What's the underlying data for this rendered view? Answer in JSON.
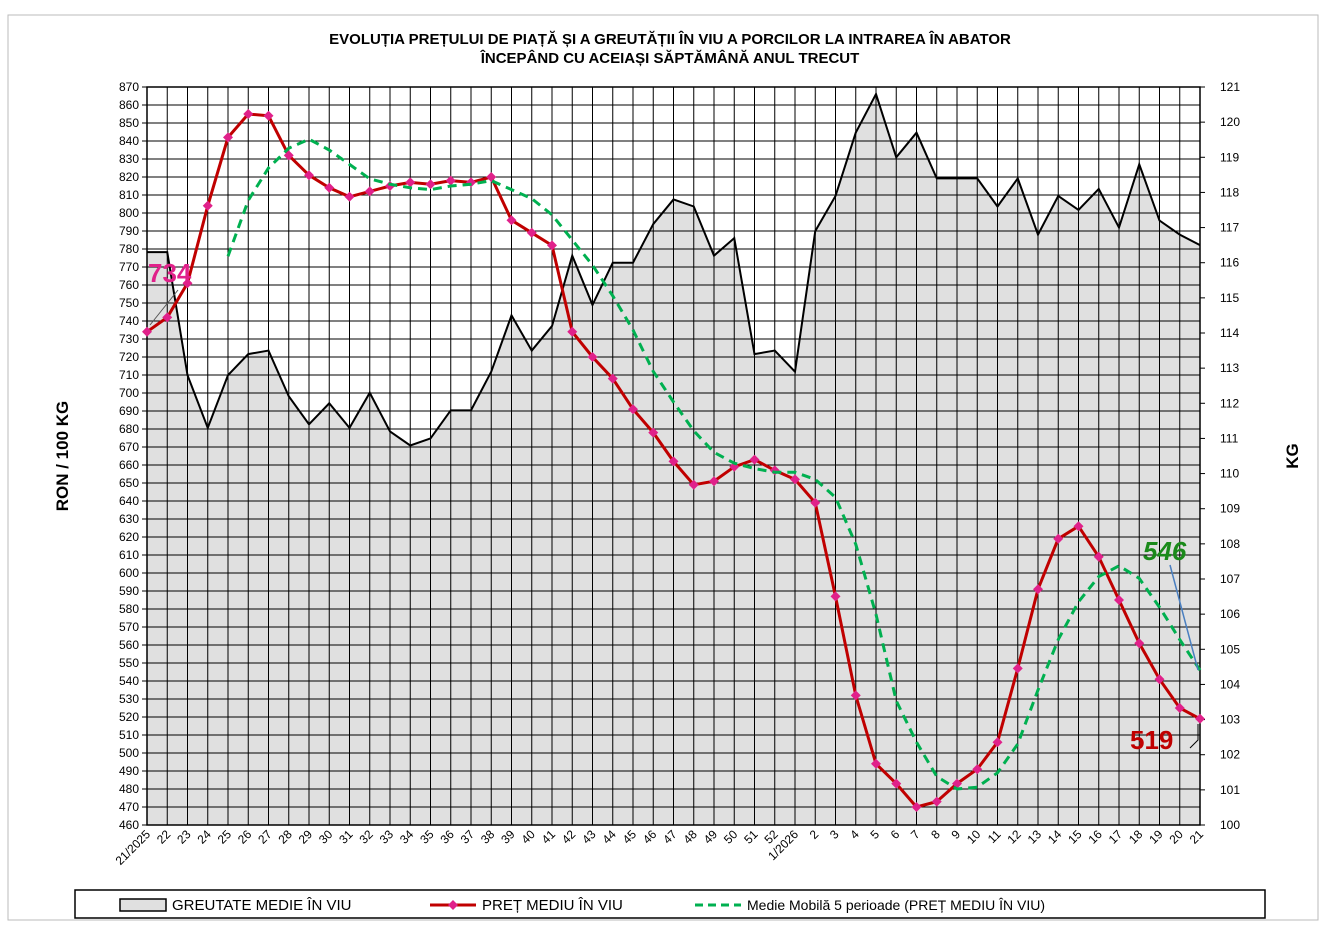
{
  "chart_data": {
    "type": "line",
    "title": [
      "EVOLUȚIA PREȚULUI DE PIAȚĂ ȘI A GREUTĂȚII  ÎN VIU A PORCILOR LA INTRAREA  ÎN ABATOR",
      "ÎNCEPÂND  CU ACEIAȘI SĂPTĂMÂNĂ ANUL TRECUT"
    ],
    "y_label": "RON / 100 KG",
    "y2_label": "KG",
    "categories": [
      "21/2025",
      "22",
      "23",
      "24",
      "25",
      "26",
      "27",
      "28",
      "29",
      "30",
      "31",
      "32",
      "33",
      "34",
      "35",
      "36",
      "37",
      "38",
      "39",
      "40",
      "41",
      "42",
      "43",
      "44",
      "45",
      "46",
      "47",
      "48",
      "49",
      "50",
      "51",
      "52",
      "1/2026",
      "2",
      "3",
      "4",
      "5",
      "6",
      "7",
      "8",
      "9",
      "10",
      "11",
      "12",
      "13",
      "14",
      "15",
      "16",
      "17",
      "18",
      "19",
      "20",
      "21"
    ],
    "ylim": [
      460,
      870
    ],
    "yticks": [
      460,
      470,
      480,
      490,
      500,
      510,
      520,
      530,
      540,
      550,
      560,
      570,
      580,
      590,
      600,
      610,
      620,
      630,
      640,
      650,
      660,
      670,
      680,
      690,
      700,
      710,
      720,
      730,
      740,
      750,
      760,
      770,
      780,
      790,
      800,
      810,
      820,
      830,
      840,
      850,
      860,
      870
    ],
    "y2lim": [
      100,
      121
    ],
    "y2ticks": [
      100,
      101,
      102,
      103,
      104,
      105,
      106,
      107,
      108,
      109,
      110,
      111,
      112,
      113,
      114,
      115,
      116,
      117,
      118,
      119,
      120,
      121
    ],
    "grid": true,
    "series": [
      {
        "name": "GREUTATE MEDIE ÎN VIU",
        "kind": "area",
        "axis": "y2",
        "color": "#000000",
        "fill": "#e0e0e0",
        "values": [
          116.3,
          116.3,
          112.8,
          111.3,
          112.8,
          113.4,
          113.5,
          112.2,
          111.4,
          112.0,
          111.3,
          112.3,
          111.2,
          110.8,
          111.0,
          111.8,
          111.8,
          112.9,
          114.5,
          113.5,
          114.2,
          116.2,
          114.8,
          116.0,
          116.0,
          117.1,
          117.8,
          117.6,
          116.2,
          116.7,
          113.4,
          113.5,
          112.9,
          116.9,
          117.9,
          119.7,
          120.8,
          119.0,
          119.7,
          118.4,
          118.4,
          118.4,
          117.6,
          118.4,
          116.8,
          117.9,
          117.5,
          118.1,
          117.0,
          118.8,
          117.2,
          116.8,
          116.5
        ]
      },
      {
        "name": "PREȚ MEDIU ÎN VIU",
        "kind": "line",
        "color": "#c00000",
        "marker_color": "#e0218a",
        "values": [
          734,
          742,
          761,
          804,
          842,
          855,
          854,
          832,
          821,
          814,
          809,
          812,
          815,
          817,
          816,
          818,
          817,
          820,
          796,
          789,
          782,
          734,
          720,
          708,
          691,
          678,
          662,
          649,
          651,
          659,
          663,
          657,
          652,
          639,
          587,
          532,
          494,
          483,
          470,
          473,
          483,
          491,
          506,
          547,
          591,
          619,
          626,
          609,
          585,
          561,
          541,
          525,
          519
        ]
      },
      {
        "name": "Medie Mobilă 5 perioade  (PREȚ MEDIU ÎN VIU)",
        "kind": "dashed",
        "color": "#00b050",
        "values": [
          null,
          null,
          null,
          null,
          776,
          807,
          825,
          836,
          841,
          835,
          827,
          819,
          816,
          814,
          813,
          815,
          816,
          818,
          813,
          808,
          799,
          785,
          771,
          754,
          735,
          712,
          695,
          679,
          667,
          661,
          658,
          656,
          656,
          652,
          642,
          616,
          577,
          529,
          506,
          487,
          480,
          481,
          489,
          505,
          535,
          563,
          584,
          598,
          604,
          597,
          581,
          563,
          546
        ]
      }
    ],
    "annotations": [
      {
        "text": "734",
        "color": "#e0218a"
      },
      {
        "text": "546",
        "color": "#1a8a1a"
      },
      {
        "text": "519",
        "color": "#c00000"
      }
    ]
  }
}
